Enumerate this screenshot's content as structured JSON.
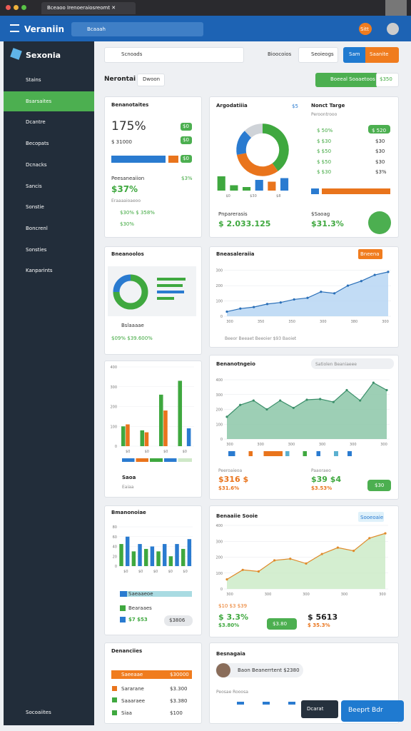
{
  "browser": {
    "tab": "Bceaoo Irenoeraiosreomt ✕"
  },
  "header": {
    "brand": "Veraniin",
    "search": "Bcaaah",
    "badge": "Sitt"
  },
  "sidebar": {
    "title": "Sexonia",
    "items": [
      "Stains",
      "Bsarsaites",
      "Dcantre",
      "Becopats",
      "Dcnacks",
      "Sancis",
      "Sonstie",
      "Boncrenl",
      "Sonsties",
      "Kanparints"
    ],
    "active": 1,
    "footer": "Socoaiites"
  },
  "toolbar": {
    "search": "Scnoads",
    "filter": "Bioocoios",
    "settings": "Seoieogs",
    "primary": "Sam",
    "secondary": "Saanite"
  },
  "section": {
    "title": "Nerontai",
    "button": "Dwoon",
    "action": "Boeeal Soaaetoos",
    "amount": "$350"
  },
  "cards": {
    "l1": {
      "title": "Benanotaites",
      "kpi": "175%",
      "sub": "$ 31000",
      "pills": [
        "$0",
        "$0",
        "$0"
      ],
      "label": "Peesaneaiion",
      "label_value": "$3%",
      "kpi2": "$37%",
      "note": "Eraaaaioaeoo",
      "line1": "$30% $ 358%",
      "line2": "$30%"
    },
    "r1": {
      "title": "Argodatiiia",
      "tag": "$5",
      "donut": {
        "type": "pie",
        "values": [
          40,
          32,
          16,
          12
        ],
        "colors": [
          "#3fa83f",
          "#e9741c",
          "#2a7bd0",
          "#cfd3d8"
        ]
      },
      "bars": {
        "type": "bar",
        "ylim": [
          0,
          10
        ],
        "values": [
          8,
          3,
          2,
          6,
          5,
          7
        ],
        "colors": [
          "#3fa83f",
          "#3fa83f",
          "#3fa83f",
          "#2a7bd0",
          "#e9741c",
          "#2a7bd0"
        ],
        "xlabels": [
          "$0",
          "$30",
          "$8"
        ]
      },
      "panel_title": "Nonct Targe",
      "panel_sub": "Peroontrooo",
      "rows": [
        {
          "label": "$ 50%",
          "value": "$ 520"
        },
        {
          "label": "$ $30",
          "value": "$30"
        },
        {
          "label": "$ $50",
          "value": "$30"
        },
        {
          "label": "$ $50",
          "value": "$30"
        },
        {
          "label": "$ $30",
          "value": "$3%"
        }
      ],
      "foot_label": "Pnparerasis",
      "foot_value": "$ 2.033.125",
      "foot2_label": "$Saoag",
      "foot2_value": "$31.3%"
    },
    "l2": {
      "title": "Bneanoolos",
      "donut": {
        "type": "pie",
        "values": [
          75,
          25
        ],
        "colors": [
          "#3fa83f",
          "#2a7bd0"
        ]
      },
      "legend": "Bslaaaae",
      "values_text": "$09% $39.600%"
    },
    "r2": {
      "title": "Bneasaleraiia",
      "pill": "Bneena",
      "chart": {
        "type": "line",
        "ylim": [
          0,
          350
        ],
        "yticks": [
          0,
          100,
          200,
          300
        ],
        "values": [
          30,
          50,
          60,
          80,
          90,
          110,
          120,
          160,
          150,
          200,
          230,
          270,
          290
        ],
        "color": "#2a6fb8",
        "fill": "#b7d6f3",
        "markers": true,
        "xlabels": [
          "300",
          "350",
          "350",
          "300",
          "380",
          "300"
        ]
      },
      "legend": "Beeor   Beeaet   Beeoier   $93 Baoiet"
    },
    "l3": {
      "chart": {
        "type": "bar",
        "ylim": [
          0,
          400
        ],
        "yticks": [
          0,
          100,
          200,
          300,
          400
        ],
        "series": [
          {
            "color": "#3fa83f",
            "values": [
              100,
              80,
              260,
              330
            ]
          },
          {
            "color": "#e9741c",
            "values": [
              110,
              70,
              180,
              0
            ]
          },
          {
            "color": "#2a7bd0",
            "values": [
              0,
              0,
              0,
              90
            ]
          }
        ],
        "xlabels": [
          "$0",
          "$0",
          "$0",
          "$0"
        ]
      },
      "label": "Saoa",
      "note": "Eaiaa"
    },
    "r3": {
      "title": "Benanotngeio",
      "pill": "Satiolen Beaniaeee",
      "chart": {
        "type": "line",
        "ylim": [
          0,
          400
        ],
        "yticks": [
          0,
          100,
          200,
          300,
          400
        ],
        "values": [
          150,
          230,
          260,
          200,
          260,
          210,
          265,
          270,
          250,
          330,
          260,
          380,
          330
        ],
        "color": "#3b8f6a",
        "fill": "#8cc7a8",
        "markers": true,
        "xlabels": [
          "300",
          "300",
          "300",
          "300",
          "300",
          "300"
        ]
      },
      "foot_label": "Peeroaieoa",
      "foot_value": "$316 $",
      "foot_pct": "$31.6%",
      "foot2_label": "Paaoraeo",
      "foot2_value": "$39 $4",
      "foot2_pct": "$3.53%",
      "pill2": "$30"
    },
    "l4": {
      "title": "Bmanonoiae",
      "chart": {
        "type": "bar",
        "ylim": [
          0,
          80
        ],
        "yticks": [
          0,
          20,
          40,
          60,
          80
        ],
        "values": [
          45,
          60,
          30,
          45,
          35,
          40,
          30,
          45,
          20,
          45,
          35,
          55
        ],
        "colors": [
          "#3fa83f",
          "#2a7bd0",
          "#3fa83f",
          "#2a7bd0",
          "#3fa83f",
          "#2a7bd0",
          "#3fa83f",
          "#2a7bd0",
          "#3fa83f",
          "#2a7bd0",
          "#3fa83f",
          "#2a7bd0"
        ],
        "xlabels": [
          "$0",
          "$0",
          "$0",
          "$0",
          "$0"
        ]
      },
      "row1": "Saeaaeoe",
      "row2": "Bearaaes",
      "row3": "$7 $53",
      "pill": "$3806"
    },
    "r4": {
      "title": "Benaaiie Sooie",
      "pill": "Sooeoaie",
      "chart": {
        "type": "line",
        "ylim": [
          0,
          400
        ],
        "yticks": [
          0,
          100,
          200,
          300,
          400
        ],
        "values": [
          60,
          120,
          110,
          180,
          190,
          160,
          220,
          260,
          240,
          320,
          350
        ],
        "color": "#e08a2a",
        "fill": "#cdebc8",
        "markers": true,
        "xlabels": [
          "300",
          "300",
          "300",
          "300",
          "300"
        ]
      },
      "row1": "$10   $3   $39",
      "row2": "$ 3.3%",
      "row3": "$3.80%",
      "pill2": "$3.80",
      "right1": "$ 5613",
      "right2": "$ 35.3%"
    },
    "l5": {
      "title": "Denanciies",
      "rows": [
        {
          "label": "Saeeaae",
          "value": "$30000"
        },
        {
          "label": "Sararane",
          "value": "$3.300"
        },
        {
          "label": "Saaaraee",
          "value": "$3.380"
        },
        {
          "label": "Siaa",
          "value": "$100"
        }
      ]
    },
    "r5": {
      "title": "Besnagaia",
      "chat": "Baon Beanerrtent $2380",
      "sub": "Peosae Rooosa",
      "float1": "Dcarat",
      "float2": "Beeprt   Bdr"
    }
  }
}
